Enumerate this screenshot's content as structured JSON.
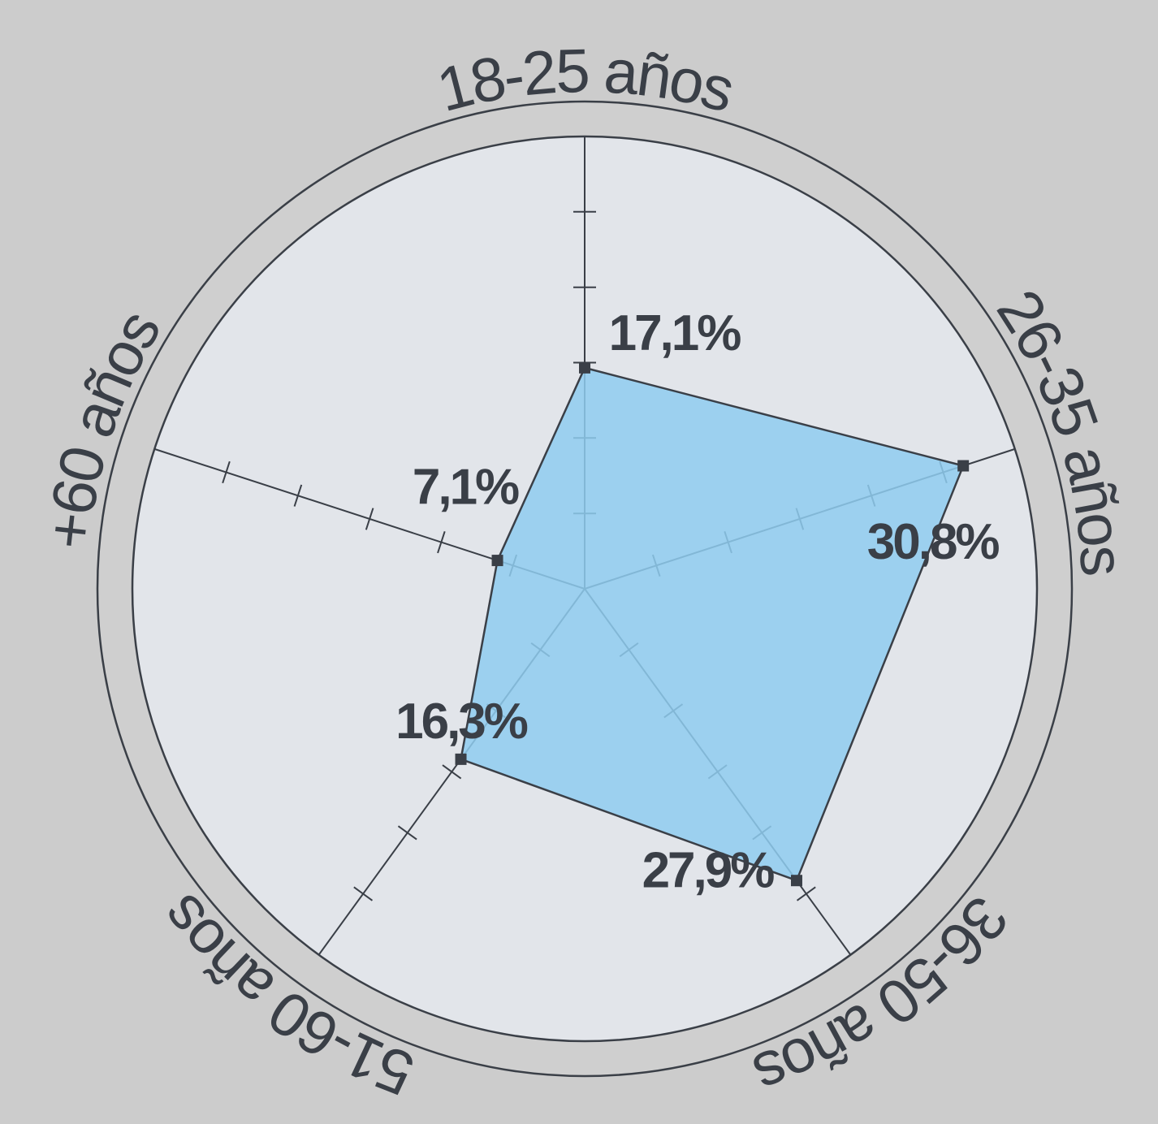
{
  "chart_data": {
    "type": "radar",
    "categories": [
      "18-25 años",
      "26-35 años",
      "36-50 años",
      "51-60 años",
      "+60 años"
    ],
    "values": [
      17.1,
      30.8,
      27.9,
      16.3,
      7.1
    ],
    "value_labels": [
      "17,1%",
      "30,8%",
      "27,9%",
      "16,3%",
      "7,1%"
    ],
    "color": "#8fcdf0",
    "rlim": [
      0,
      35
    ],
    "rticks": [
      5.83,
      11.67,
      17.5,
      23.33,
      29.17
    ]
  }
}
